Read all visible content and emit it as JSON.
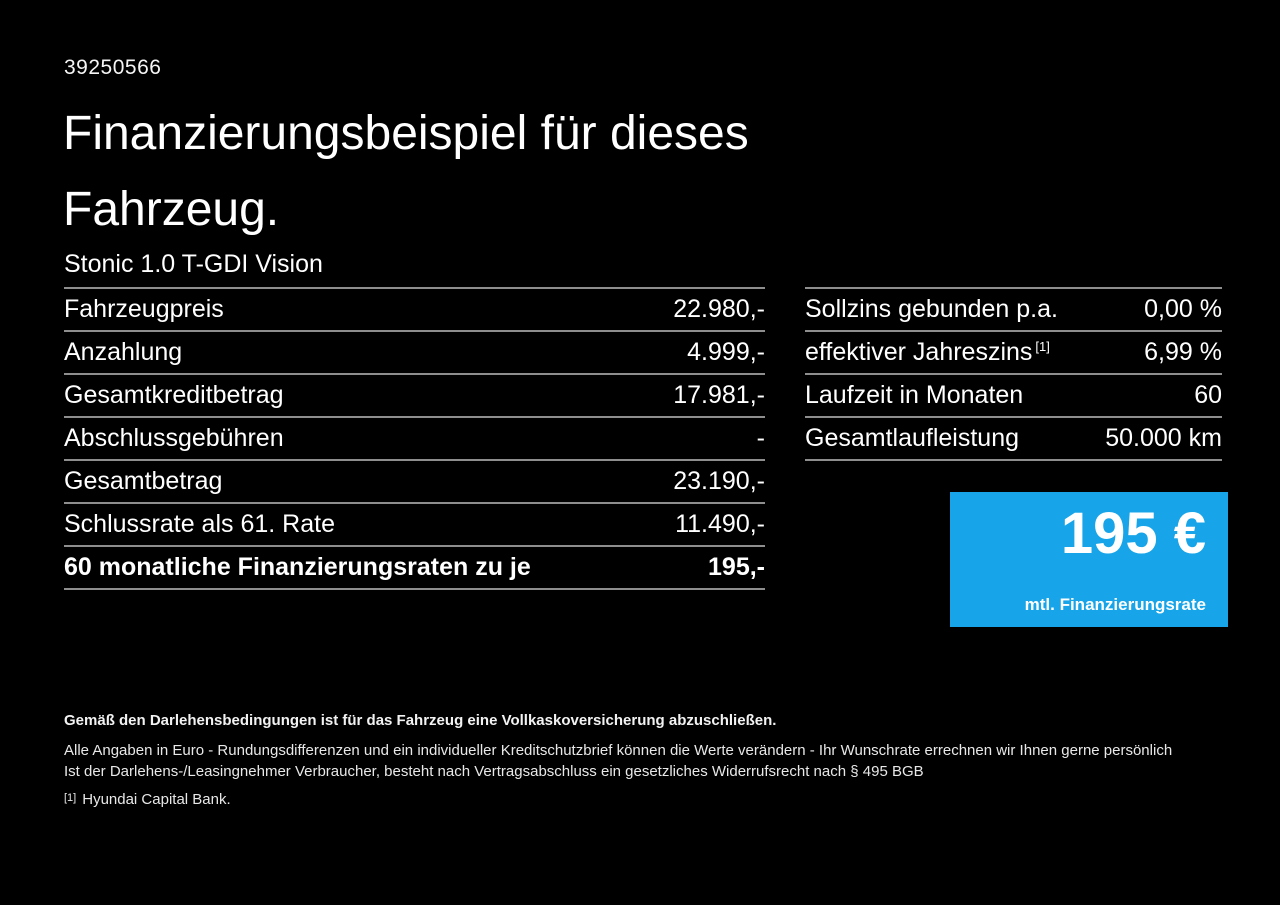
{
  "page": {
    "id_number": "39250566",
    "title": "Finanzierungsbeispiel für dieses\nFahrzeug.",
    "vehicle_name": "Stonic 1.0 T-GDI Vision"
  },
  "colors": {
    "background": "#000000",
    "text": "#ffffff",
    "divider_gray": "#8e8e8e",
    "accent_blue": "#17a4e8"
  },
  "finance_table": {
    "rows": [
      {
        "label": "Fahrzeugpreis",
        "value": "22.980,-"
      },
      {
        "label": "Anzahlung",
        "value": "4.999,-"
      },
      {
        "label": "Gesamtkreditbetrag",
        "value": "17.981,-"
      },
      {
        "label": "Abschlussgebühren",
        "value": "-"
      },
      {
        "label": "Gesamtbetrag",
        "value": "23.190,-"
      },
      {
        "label": "Schlussrate als 61. Rate",
        "value": "11.490,-"
      },
      {
        "label": "60 monatliche Finanzierungsraten zu je",
        "value": "195,-"
      }
    ]
  },
  "conditions_table": {
    "rows": [
      {
        "label": "Sollzins gebunden p.a.",
        "value": "0,00 %"
      },
      {
        "label": "effektiver Jahreszins",
        "sup": "[1]",
        "value": "6,99 %"
      },
      {
        "label": "Laufzeit in Monaten",
        "value": "60"
      },
      {
        "label": "Gesamtlaufleistung",
        "value": "50.000 km"
      }
    ]
  },
  "rate_box": {
    "amount": "195 €",
    "caption": "mtl. Finanzierungsrate"
  },
  "footer": {
    "bold_note": "Gemäß den Darlehensbedingungen ist für das Fahrzeug eine Vollkaskoversicherung abzuschließen.",
    "note1": "Alle Angaben in Euro - Rundungsdifferenzen und ein individueller Kreditschutzbrief können die Werte verändern - Ihr Wunschrate errechnen wir Ihnen gerne persönlich",
    "note2": "Ist der Darlehens-/Leasingnehmer Verbraucher, besteht nach Vertragsabschluss ein gesetzliches Widerrufsrecht nach § 495 BGB",
    "footnote_marker": "[1]",
    "footnote_text": "Hyundai Capital Bank."
  }
}
